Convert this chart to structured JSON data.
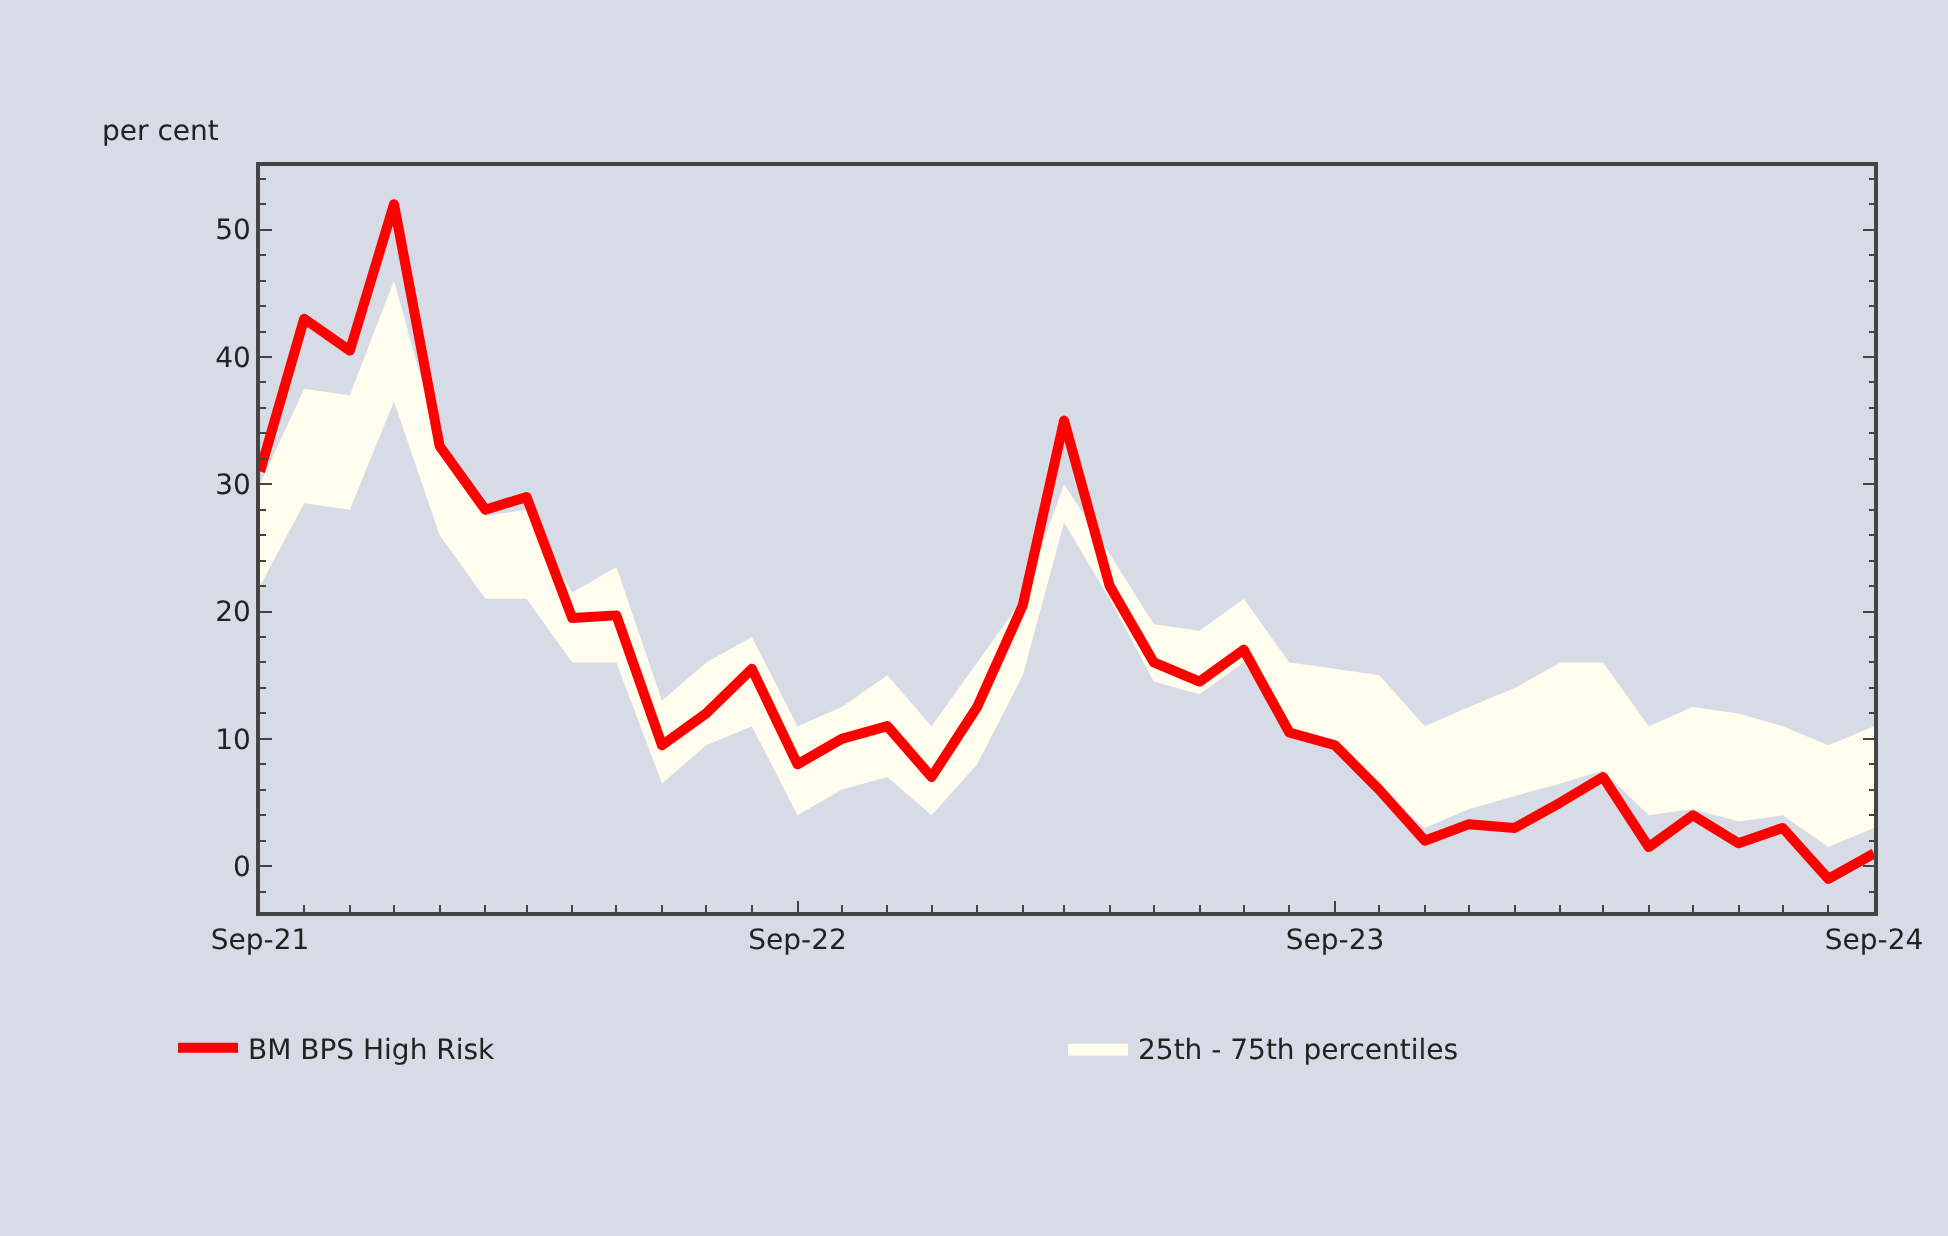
{
  "chart_data": {
    "type": "line",
    "ylabel": "per cent",
    "annotations": [
      "25th - 75th percentiles"
    ],
    "x": [
      "2021-09",
      "2021-10",
      "2021-11",
      "2021-12",
      "2022-01",
      "2022-02",
      "2022-03",
      "2022-04",
      "2022-05",
      "2022-06",
      "2022-07",
      "2022-08",
      "2022-09",
      "2022-10",
      "2022-11",
      "2022-12",
      "2023-01",
      "2023-02",
      "2023-03",
      "2023-04",
      "2023-05",
      "2023-06",
      "2023-07",
      "2023-08",
      "2023-09",
      "2023-10",
      "2023-11",
      "2023-12",
      "2024-01",
      "2024-02",
      "2024-03",
      "2024-04",
      "2024-05",
      "2024-06",
      "2024-07",
      "2024-08",
      "2024-09"
    ],
    "series": [
      {
        "name": "BM BPS High Risk",
        "color": "#ff0000",
        "values": [
          31,
          43,
          40.5,
          52,
          33,
          28,
          29,
          19.5,
          19.7,
          9.5,
          12,
          15.5,
          8,
          10,
          11,
          7,
          12.5,
          20.5,
          35,
          22,
          16,
          14.5,
          17,
          10.5,
          9.5,
          6,
          2,
          3.3,
          3,
          5,
          7,
          1.5,
          4,
          1.8,
          3,
          -1,
          1
        ],
        "lower": [
          22,
          28.5,
          28,
          36.5,
          26,
          21,
          21,
          16,
          16,
          6.5,
          9.5,
          11,
          4,
          6,
          7,
          4,
          8,
          15,
          27,
          21,
          14.5,
          13.5,
          16,
          10.5,
          9.5,
          6,
          3,
          4.5,
          5.5,
          6.5,
          7.5,
          4,
          4.5,
          3.5,
          4,
          1.5,
          3
        ],
        "upper": [
          30,
          37.5,
          37,
          46,
          33,
          27.5,
          28,
          21.5,
          23.5,
          13,
          16,
          18,
          11,
          12.5,
          15,
          11,
          16,
          21,
          30,
          24.5,
          19,
          18.5,
          21,
          16,
          15.5,
          15,
          11,
          12.5,
          14,
          16,
          16,
          11,
          12.5,
          12,
          11,
          9.5,
          11
        ]
      }
    ],
    "xlim": [
      "2021-09",
      "2024-09"
    ],
    "xticks": [
      {
        "value": "2021-09",
        "label": "Sep-21"
      },
      {
        "value": "2022-09",
        "label": "Sep-22"
      },
      {
        "value": "2023-09",
        "label": "Sep-23"
      },
      {
        "value": "2024-09",
        "label": "Sep-24"
      }
    ],
    "ylim": [
      -3.6,
      55
    ],
    "yticks": [
      0,
      10,
      20,
      30,
      40,
      50
    ],
    "grid": false,
    "legend": "bottom",
    "line_style": "solid",
    "marker": "none"
  }
}
